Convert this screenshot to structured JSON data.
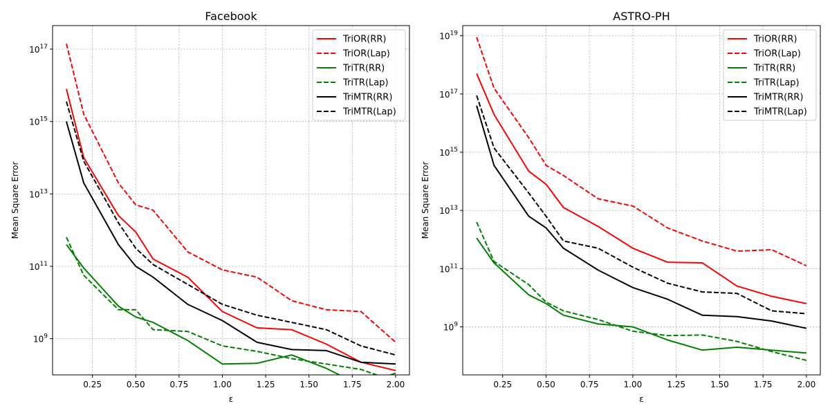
{
  "chart_data": [
    {
      "type": "line",
      "title": "Facebook",
      "xlabel": "ε",
      "ylabel": "Mean Square Error",
      "xscale": "linear",
      "yscale": "log",
      "xlim": [
        0.02,
        2.08
      ],
      "ylim_log10": [
        8.0,
        17.65
      ],
      "xticks": [
        0.25,
        0.5,
        0.75,
        1.0,
        1.25,
        1.5,
        1.75,
        2.0
      ],
      "xtick_labels": [
        "0.25",
        "0.50",
        "0.75",
        "1.00",
        "1.25",
        "1.50",
        "1.75",
        "2.00"
      ],
      "yticks_log10": [
        9,
        11,
        13,
        15,
        17
      ],
      "ytick_labels": [
        "10^9",
        "10^11",
        "10^13",
        "10^15",
        "10^17"
      ],
      "grid": true,
      "legend_position": "upper right",
      "x": [
        0.1,
        0.2,
        0.4,
        0.5,
        0.6,
        0.8,
        1.0,
        1.2,
        1.4,
        1.6,
        1.8,
        2.0
      ],
      "series": [
        {
          "name": "TriOR(RR)",
          "color": "#ff0000",
          "dash": "solid",
          "values_log10": [
            15.9,
            14.0,
            12.4,
            11.95,
            11.2,
            10.7,
            9.75,
            9.3,
            9.25,
            8.85,
            8.35,
            8.12
          ]
        },
        {
          "name": "TriOR(Lap)",
          "color": "#ff0000",
          "dash": "dashed",
          "values_log10": [
            17.15,
            15.2,
            13.3,
            12.7,
            12.55,
            11.4,
            10.9,
            10.7,
            10.05,
            9.8,
            9.75,
            8.9
          ]
        },
        {
          "name": "TriTR(RR)",
          "color": "#008000",
          "dash": "solid",
          "values_log10": [
            11.6,
            10.95,
            9.9,
            9.6,
            9.45,
            8.95,
            8.3,
            8.32,
            8.55,
            8.18,
            7.7,
            8.05
          ]
        },
        {
          "name": "TriTR(Lap)",
          "color": "#008000",
          "dash": "dashed",
          "values_log10": [
            11.8,
            10.75,
            9.8,
            9.8,
            9.25,
            9.2,
            8.8,
            8.65,
            8.45,
            8.3,
            8.15,
            7.82
          ]
        },
        {
          "name": "TriMTR(RR)",
          "color": "#000000",
          "dash": "solid",
          "values_log10": [
            15.0,
            13.3,
            11.6,
            11.0,
            10.7,
            9.95,
            9.5,
            8.9,
            8.7,
            8.67,
            8.35,
            8.3
          ]
        },
        {
          "name": "TriMTR(Lap)",
          "color": "#000000",
          "dash": "dashed",
          "values_log10": [
            15.55,
            13.9,
            12.2,
            11.5,
            11.05,
            10.5,
            9.95,
            9.65,
            9.45,
            9.25,
            8.8,
            8.55
          ]
        }
      ]
    },
    {
      "type": "line",
      "title": "ASTRO-PH",
      "xlabel": "ε",
      "ylabel": "Mean Square Error",
      "xscale": "linear",
      "yscale": "log",
      "xlim": [
        0.02,
        2.08
      ],
      "ylim_log10": [
        7.35,
        19.35
      ],
      "xticks": [
        0.25,
        0.5,
        0.75,
        1.0,
        1.25,
        1.5,
        1.75,
        2.0
      ],
      "xtick_labels": [
        "0.25",
        "0.50",
        "0.75",
        "1.00",
        "1.25",
        "1.50",
        "1.75",
        "2.00"
      ],
      "yticks_log10": [
        9,
        11,
        13,
        15,
        17,
        19
      ],
      "ytick_labels": [
        "10^9",
        "10^11",
        "10^13",
        "10^15",
        "10^17",
        "10^19"
      ],
      "grid": true,
      "legend_position": "upper right",
      "x": [
        0.1,
        0.2,
        0.4,
        0.5,
        0.6,
        0.8,
        1.0,
        1.2,
        1.4,
        1.6,
        1.8,
        2.0
      ],
      "series": [
        {
          "name": "TriOR(RR)",
          "color": "#ff0000",
          "dash": "solid",
          "values_log10": [
            17.7,
            16.3,
            14.35,
            13.9,
            13.1,
            12.45,
            11.7,
            11.22,
            11.2,
            10.4,
            10.05,
            9.8
          ]
        },
        {
          "name": "TriOR(Lap)",
          "color": "#ff0000",
          "dash": "dashed",
          "values_log10": [
            18.95,
            17.2,
            15.5,
            14.55,
            14.2,
            13.4,
            13.15,
            12.4,
            11.95,
            11.6,
            11.65,
            11.1
          ]
        },
        {
          "name": "TriTR(RR)",
          "color": "#008000",
          "dash": "solid",
          "values_log10": [
            12.05,
            11.2,
            10.1,
            9.8,
            9.4,
            9.1,
            9.0,
            8.55,
            8.2,
            8.3,
            8.2,
            8.1
          ]
        },
        {
          "name": "TriTR(Lap)",
          "color": "#008000",
          "dash": "dashed",
          "values_log10": [
            12.6,
            11.25,
            10.45,
            9.85,
            9.55,
            9.25,
            8.85,
            8.7,
            8.72,
            8.5,
            8.15,
            7.85
          ]
        },
        {
          "name": "TriMTR(RR)",
          "color": "#000000",
          "dash": "solid",
          "values_log10": [
            16.6,
            14.55,
            12.8,
            12.4,
            11.7,
            10.95,
            10.35,
            9.95,
            9.4,
            9.35,
            9.2,
            8.95
          ]
        },
        {
          "name": "TriMTR(Lap)",
          "color": "#000000",
          "dash": "dashed",
          "values_log10": [
            16.95,
            15.15,
            13.6,
            12.8,
            11.95,
            11.7,
            11.05,
            10.5,
            10.2,
            10.15,
            9.55,
            9.45
          ]
        }
      ]
    }
  ]
}
